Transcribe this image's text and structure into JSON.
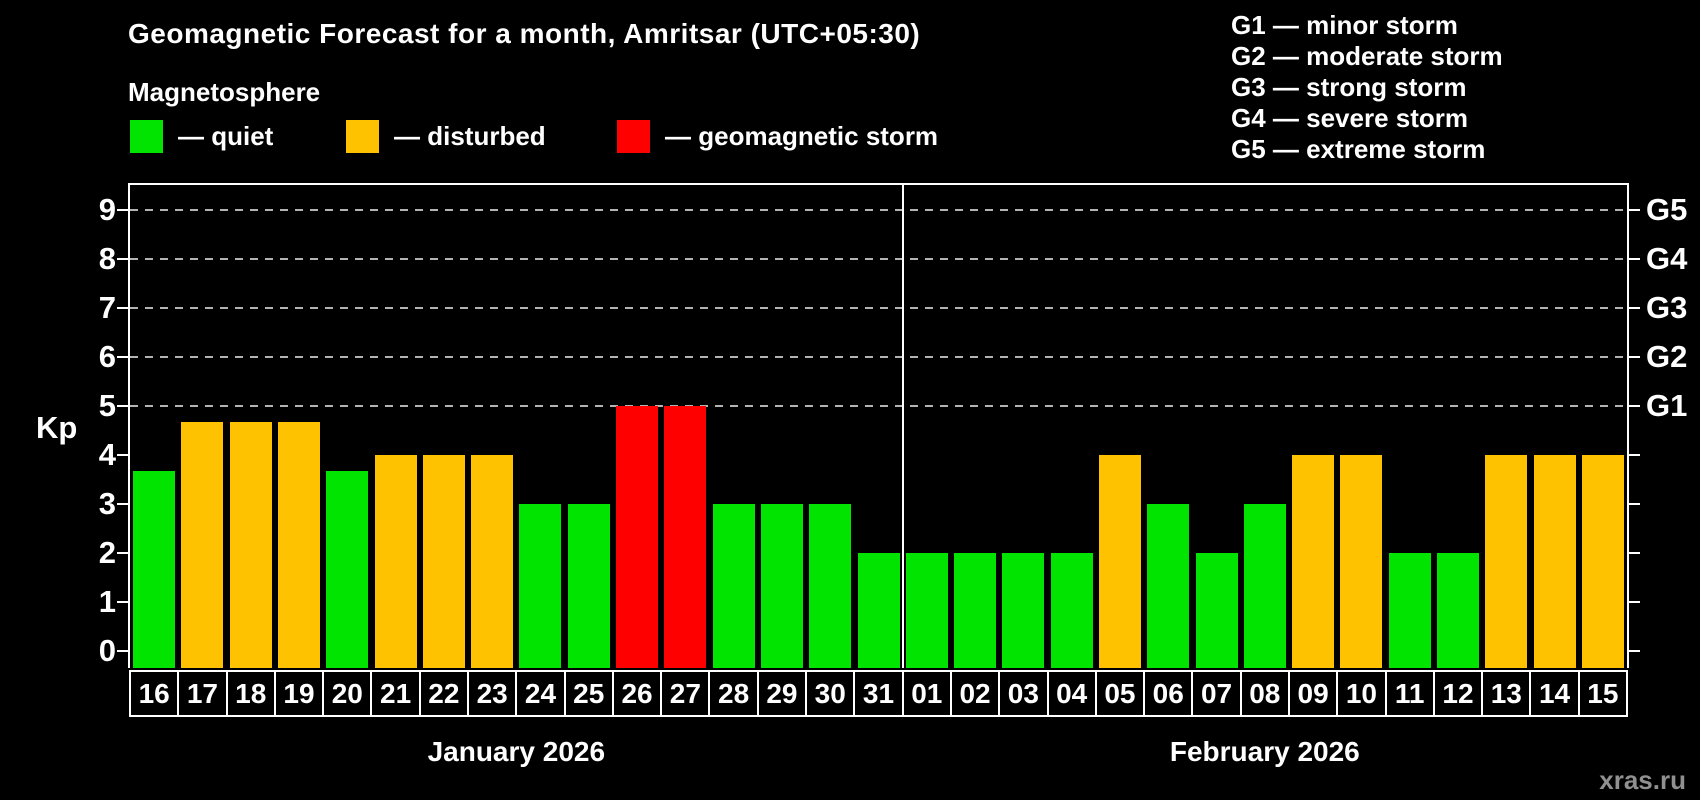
{
  "title": "Geomagnetic Forecast for a month, Amritsar (UTC+05:30)",
  "subtitle": "Magnetosphere",
  "watermark": "xras.ru",
  "legend": {
    "items": [
      {
        "key": "quiet",
        "label": "— quiet",
        "color": "#00e400"
      },
      {
        "key": "disturbed",
        "label": "— disturbed",
        "color": "#ffc200"
      },
      {
        "key": "storm",
        "label": "— geomagnetic storm",
        "color": "#ff0000"
      }
    ]
  },
  "g_scale_legend": [
    "G1 — minor storm",
    "G2 — moderate storm",
    "G3 — strong storm",
    "G4 — severe storm",
    "G5 — extreme storm"
  ],
  "chart_data": {
    "type": "bar",
    "title": "Geomagnetic Forecast for a month, Amritsar (UTC+05:30)",
    "xlabel": "",
    "ylabel": "Kp",
    "ylim": [
      0,
      9
    ],
    "yticks": [
      0,
      1,
      2,
      3,
      4,
      5,
      6,
      7,
      8,
      9
    ],
    "gridline_levels": [
      5,
      6,
      7,
      8,
      9
    ],
    "grid": "dashed horizontal at storm levels",
    "legend_position": "top",
    "right_axis_labels": [
      {
        "value": 5,
        "label": "G1"
      },
      {
        "value": 6,
        "label": "G2"
      },
      {
        "value": 7,
        "label": "G3"
      },
      {
        "value": 8,
        "label": "G4"
      },
      {
        "value": 9,
        "label": "G5"
      }
    ],
    "status_colors": {
      "quiet": "#00e400",
      "disturbed": "#ffc200",
      "storm": "#ff0000"
    },
    "months": [
      {
        "label": "January 2026",
        "start_index": 0,
        "count": 16
      },
      {
        "label": "February 2026",
        "start_index": 16,
        "count": 15
      }
    ],
    "bars": [
      {
        "day": "16",
        "value": 3.67,
        "status": "quiet"
      },
      {
        "day": "17",
        "value": 4.67,
        "status": "disturbed"
      },
      {
        "day": "18",
        "value": 4.67,
        "status": "disturbed"
      },
      {
        "day": "19",
        "value": 4.67,
        "status": "disturbed"
      },
      {
        "day": "20",
        "value": 3.67,
        "status": "quiet"
      },
      {
        "day": "21",
        "value": 4,
        "status": "disturbed"
      },
      {
        "day": "22",
        "value": 4,
        "status": "disturbed"
      },
      {
        "day": "23",
        "value": 4,
        "status": "disturbed"
      },
      {
        "day": "24",
        "value": 3,
        "status": "quiet"
      },
      {
        "day": "25",
        "value": 3,
        "status": "quiet"
      },
      {
        "day": "26",
        "value": 5,
        "status": "storm"
      },
      {
        "day": "27",
        "value": 5,
        "status": "storm"
      },
      {
        "day": "28",
        "value": 3,
        "status": "quiet"
      },
      {
        "day": "29",
        "value": 3,
        "status": "quiet"
      },
      {
        "day": "30",
        "value": 3,
        "status": "quiet"
      },
      {
        "day": "31",
        "value": 2,
        "status": "quiet"
      },
      {
        "day": "01",
        "value": 2,
        "status": "quiet"
      },
      {
        "day": "02",
        "value": 2,
        "status": "quiet"
      },
      {
        "day": "03",
        "value": 2,
        "status": "quiet"
      },
      {
        "day": "04",
        "value": 2,
        "status": "quiet"
      },
      {
        "day": "05",
        "value": 4,
        "status": "disturbed"
      },
      {
        "day": "06",
        "value": 3,
        "status": "quiet"
      },
      {
        "day": "07",
        "value": 2,
        "status": "quiet"
      },
      {
        "day": "08",
        "value": 3,
        "status": "quiet"
      },
      {
        "day": "09",
        "value": 4,
        "status": "disturbed"
      },
      {
        "day": "10",
        "value": 4,
        "status": "disturbed"
      },
      {
        "day": "11",
        "value": 2,
        "status": "quiet"
      },
      {
        "day": "12",
        "value": 2,
        "status": "quiet"
      },
      {
        "day": "13",
        "value": 4,
        "status": "disturbed"
      },
      {
        "day": "14",
        "value": 4,
        "status": "disturbed"
      },
      {
        "day": "15",
        "value": 4,
        "status": "disturbed"
      }
    ]
  }
}
